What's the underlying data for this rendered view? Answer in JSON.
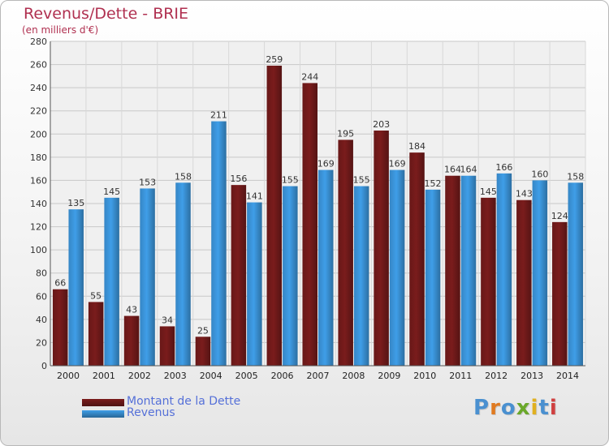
{
  "title": "Revenus/Dette - BRIE",
  "subtitle": "(en milliers d'€)",
  "chart_data": {
    "type": "bar",
    "title": "Revenus/Dette - BRIE",
    "ylabel": "(en milliers d'€)",
    "categories": [
      "2000",
      "2001",
      "2002",
      "2003",
      "2004",
      "2005",
      "2006",
      "2007",
      "2008",
      "2009",
      "2010",
      "2011",
      "2012",
      "2013",
      "2014"
    ],
    "series": [
      {
        "name": "Montant de la Dette",
        "color": "#7a1c1c",
        "values": [
          66,
          55,
          43,
          34,
          25,
          156,
          259,
          244,
          195,
          203,
          184,
          164,
          145,
          143,
          124
        ]
      },
      {
        "name": "Revenus",
        "color": "#3f9ee8",
        "values": [
          135,
          145,
          153,
          158,
          211,
          141,
          155,
          169,
          155,
          169,
          152,
          164,
          166,
          160,
          158
        ]
      }
    ],
    "ylim": [
      0,
      280
    ],
    "yticks": [
      0,
      20,
      40,
      60,
      80,
      100,
      120,
      140,
      160,
      180,
      200,
      220,
      240,
      260,
      280
    ],
    "grid": true,
    "legend_position": "bottom-left"
  },
  "legend": [
    {
      "label": "Montant de la Dette",
      "color": "#7a1c1c"
    },
    {
      "label": "Revenus",
      "color": "#3f9ee8"
    }
  ],
  "logo": {
    "letters": [
      "P",
      "r",
      "o",
      "x",
      "i",
      "t",
      "i"
    ],
    "colors": [
      "#4a90d0",
      "#e07a20",
      "#4a90d0",
      "#6aa82a",
      "#e0b020",
      "#4a90d0",
      "#d04040"
    ]
  }
}
